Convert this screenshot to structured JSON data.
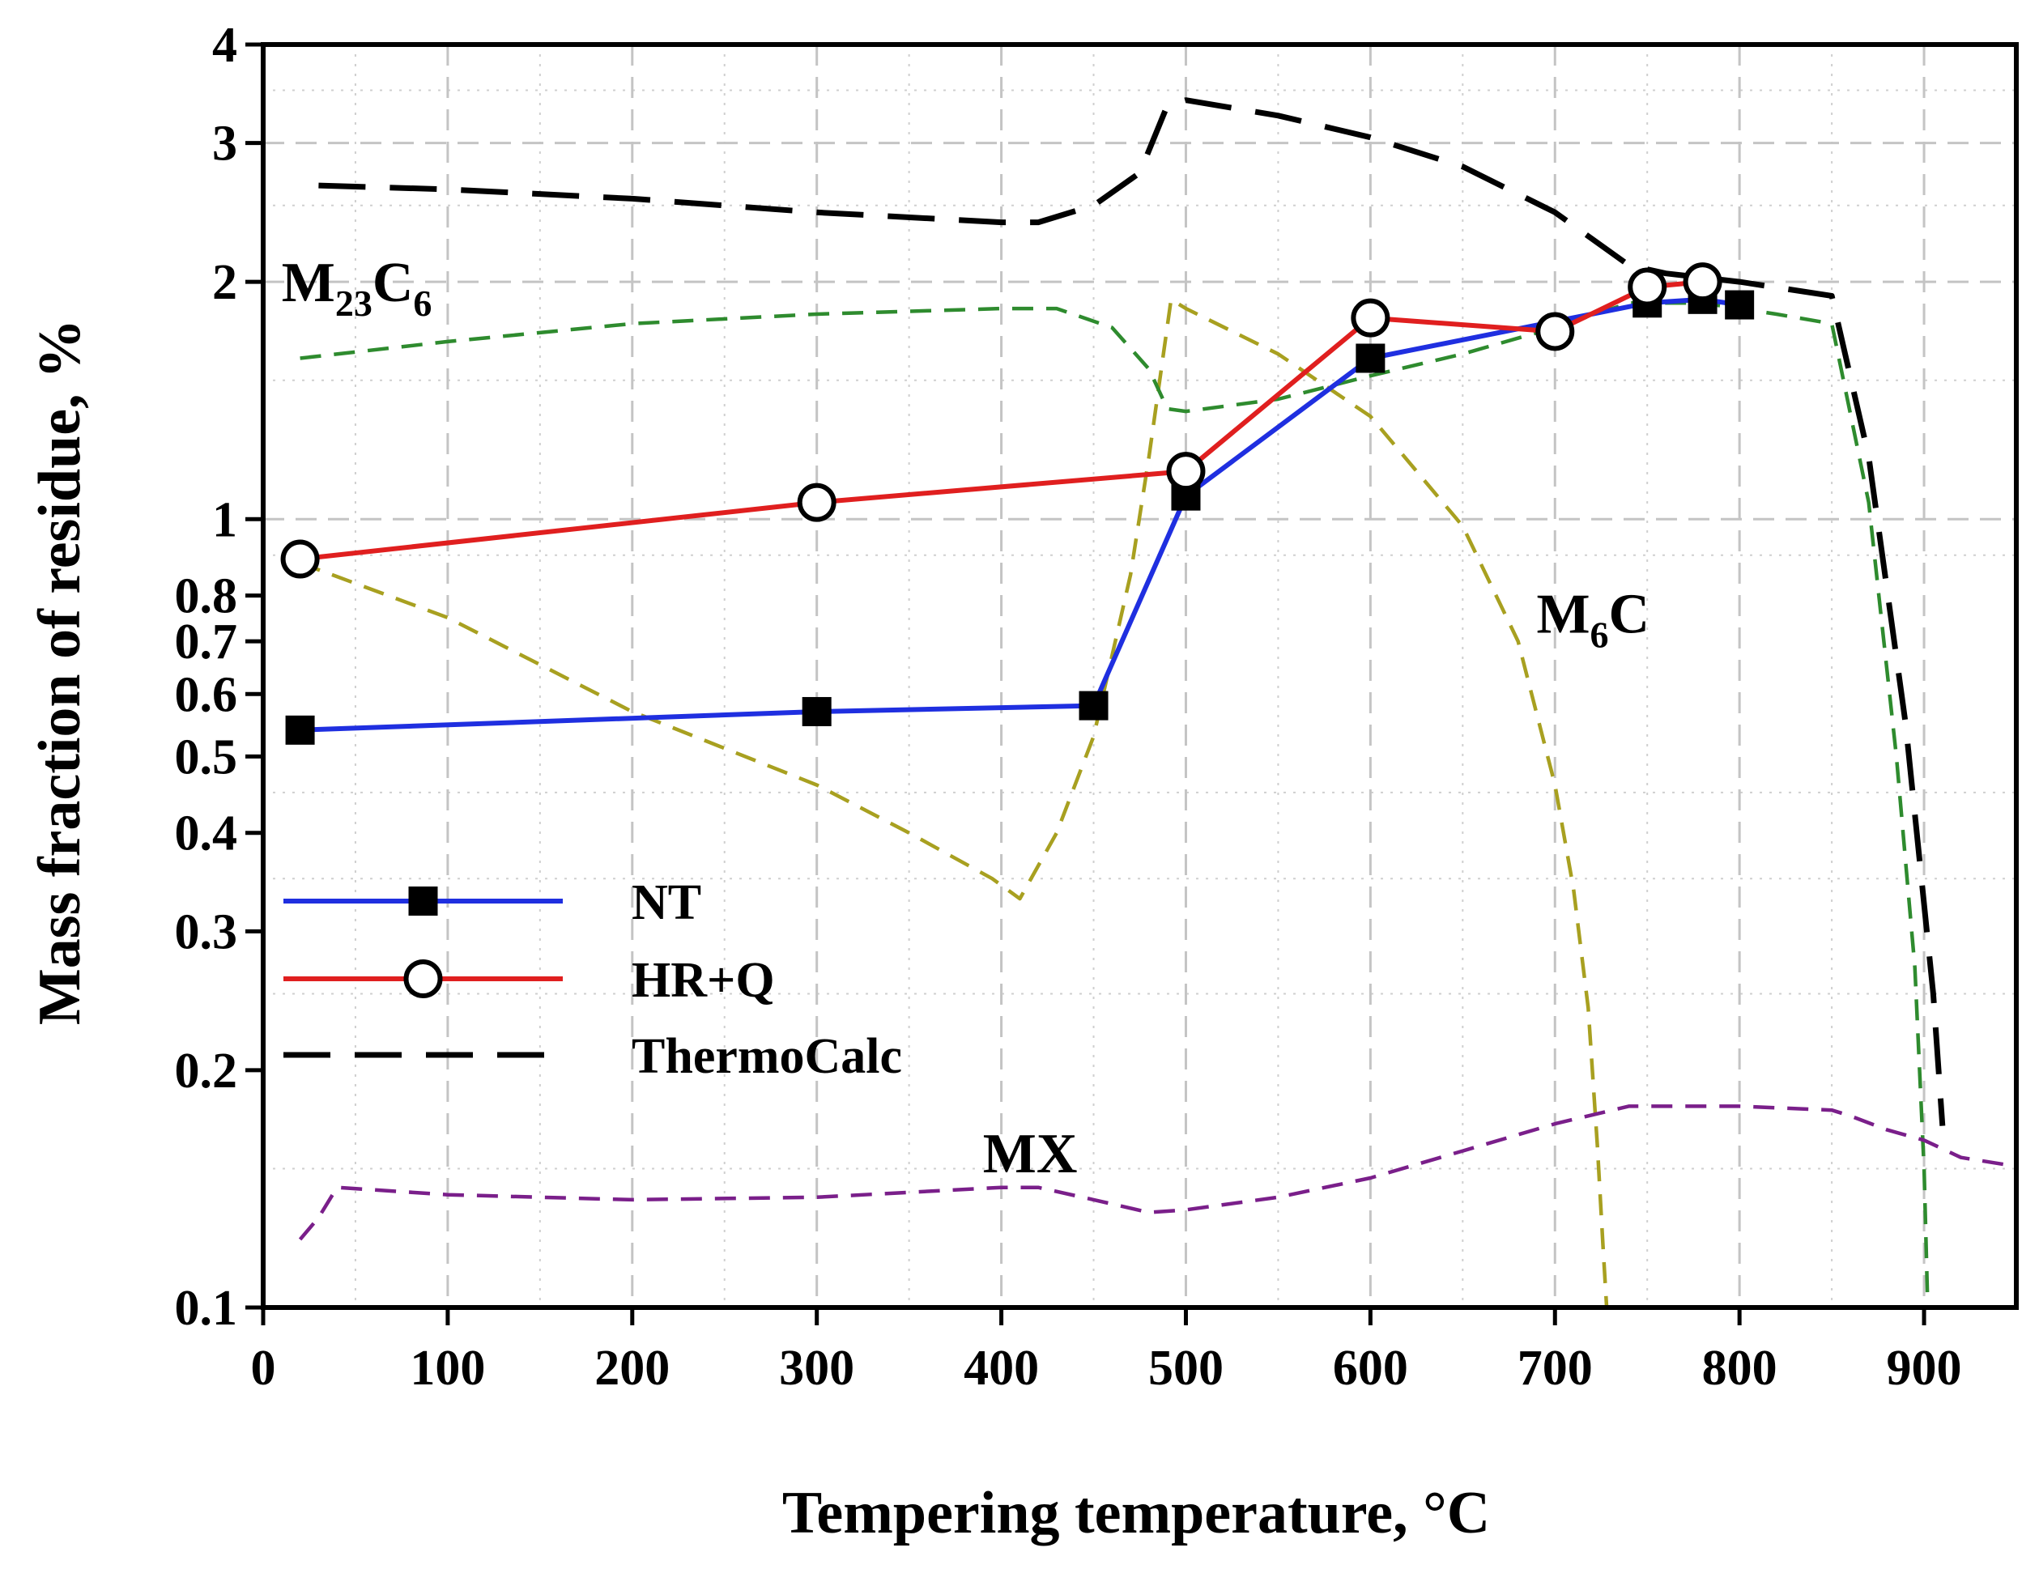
{
  "chart_data": {
    "type": "line",
    "title": "",
    "xlabel": "Tempering temperature, °C",
    "ylabel": "Mass fraction of residue, %",
    "xlim": [
      0,
      950
    ],
    "ylim": [
      0.1,
      4
    ],
    "yscale": "log",
    "x_ticks": [
      0,
      100,
      200,
      300,
      400,
      500,
      600,
      700,
      800,
      900
    ],
    "x_tick_labels": [
      "0",
      "100",
      "200",
      "300",
      "400",
      "500",
      "600",
      "700",
      "800",
      "900"
    ],
    "y_ticks": [
      0.1,
      0.2,
      0.3,
      0.4,
      0.5,
      0.6,
      0.7,
      0.8,
      1,
      2,
      3,
      4
    ],
    "y_tick_labels": [
      "0.1",
      "0.2",
      "0.3",
      "0.4",
      "0.5",
      "0.6",
      "0.7",
      "0.8",
      "1",
      "2",
      "3",
      "4"
    ],
    "grid": true,
    "legend_position": "lower-left",
    "series": [
      {
        "name": "NT",
        "color": "#1f2fe0",
        "style": "solid",
        "marker": "filled-square",
        "in_legend": true,
        "x": [
          20,
          300,
          450,
          500,
          600,
          750,
          780,
          800
        ],
        "y": [
          0.54,
          0.57,
          0.58,
          1.07,
          1.6,
          1.88,
          1.9,
          1.87
        ]
      },
      {
        "name": "HR+Q",
        "color": "#e01f1f",
        "style": "solid",
        "marker": "open-circle",
        "in_legend": true,
        "x": [
          20,
          300,
          500,
          600,
          700,
          750,
          780
        ],
        "y": [
          0.89,
          1.05,
          1.15,
          1.8,
          1.73,
          1.97,
          2.0
        ]
      },
      {
        "name": "ThermoCalc",
        "color": "#000000",
        "style": "long-dash",
        "marker": "none",
        "in_legend": true,
        "x": [
          30,
          100,
          200,
          300,
          400,
          420,
          450,
          475,
          490,
          500,
          550,
          600,
          650,
          700,
          740,
          760,
          800,
          850,
          870,
          890,
          905,
          910
        ],
        "y": [
          2.65,
          2.62,
          2.55,
          2.45,
          2.38,
          2.38,
          2.5,
          2.75,
          3.35,
          3.4,
          3.25,
          3.05,
          2.8,
          2.45,
          2.1,
          2.05,
          2.0,
          1.92,
          1.2,
          0.55,
          0.25,
          0.17
        ]
      },
      {
        "name": "M23C6",
        "color": "#2e8b2e",
        "style": "dash",
        "marker": "none",
        "in_legend": false,
        "x": [
          20,
          100,
          200,
          300,
          400,
          430,
          460,
          480,
          490,
          500,
          550,
          600,
          650,
          700,
          740,
          780,
          820,
          850,
          870,
          885,
          895,
          900,
          902
        ],
        "y": [
          1.6,
          1.68,
          1.77,
          1.82,
          1.85,
          1.85,
          1.75,
          1.55,
          1.38,
          1.37,
          1.42,
          1.52,
          1.62,
          1.75,
          1.88,
          1.88,
          1.82,
          1.77,
          1.05,
          0.5,
          0.27,
          0.15,
          0.1
        ]
      },
      {
        "name": "M6C",
        "color": "#a8a020",
        "style": "dash",
        "marker": "none",
        "in_legend": false,
        "x": [
          20,
          100,
          200,
          300,
          350,
          395,
          410,
          430,
          450,
          470,
          480,
          492,
          500,
          550,
          600,
          650,
          680,
          700,
          710,
          718,
          723,
          726,
          728
        ],
        "y": [
          0.88,
          0.75,
          0.57,
          0.46,
          0.4,
          0.35,
          0.33,
          0.4,
          0.53,
          0.85,
          1.2,
          1.9,
          1.85,
          1.62,
          1.35,
          0.98,
          0.7,
          0.46,
          0.34,
          0.24,
          0.16,
          0.12,
          0.1
        ]
      },
      {
        "name": "MX",
        "color": "#7a1f8a",
        "style": "dash",
        "marker": "none",
        "in_legend": false,
        "x": [
          20,
          30,
          40,
          100,
          200,
          300,
          400,
          420,
          450,
          480,
          500,
          550,
          600,
          650,
          700,
          740,
          800,
          850,
          860,
          880,
          900,
          920,
          950
        ],
        "y": [
          0.122,
          0.13,
          0.142,
          0.139,
          0.137,
          0.138,
          0.142,
          0.142,
          0.137,
          0.132,
          0.133,
          0.138,
          0.146,
          0.158,
          0.171,
          0.18,
          0.18,
          0.178,
          0.175,
          0.168,
          0.163,
          0.155,
          0.151
        ]
      }
    ],
    "annotations": [
      {
        "main": "M",
        "sub": "23",
        "main2": "C",
        "sub2": "6",
        "label": "M23C6",
        "x": 10,
        "y": 2.0
      },
      {
        "main": "M",
        "sub": "6",
        "main2": "C",
        "sub2": "",
        "label": "M6C",
        "x": 690,
        "y": 0.76
      },
      {
        "main": "MX",
        "sub": "",
        "main2": "",
        "sub2": "",
        "label": "MX",
        "x": 390,
        "y": 0.157
      }
    ]
  }
}
